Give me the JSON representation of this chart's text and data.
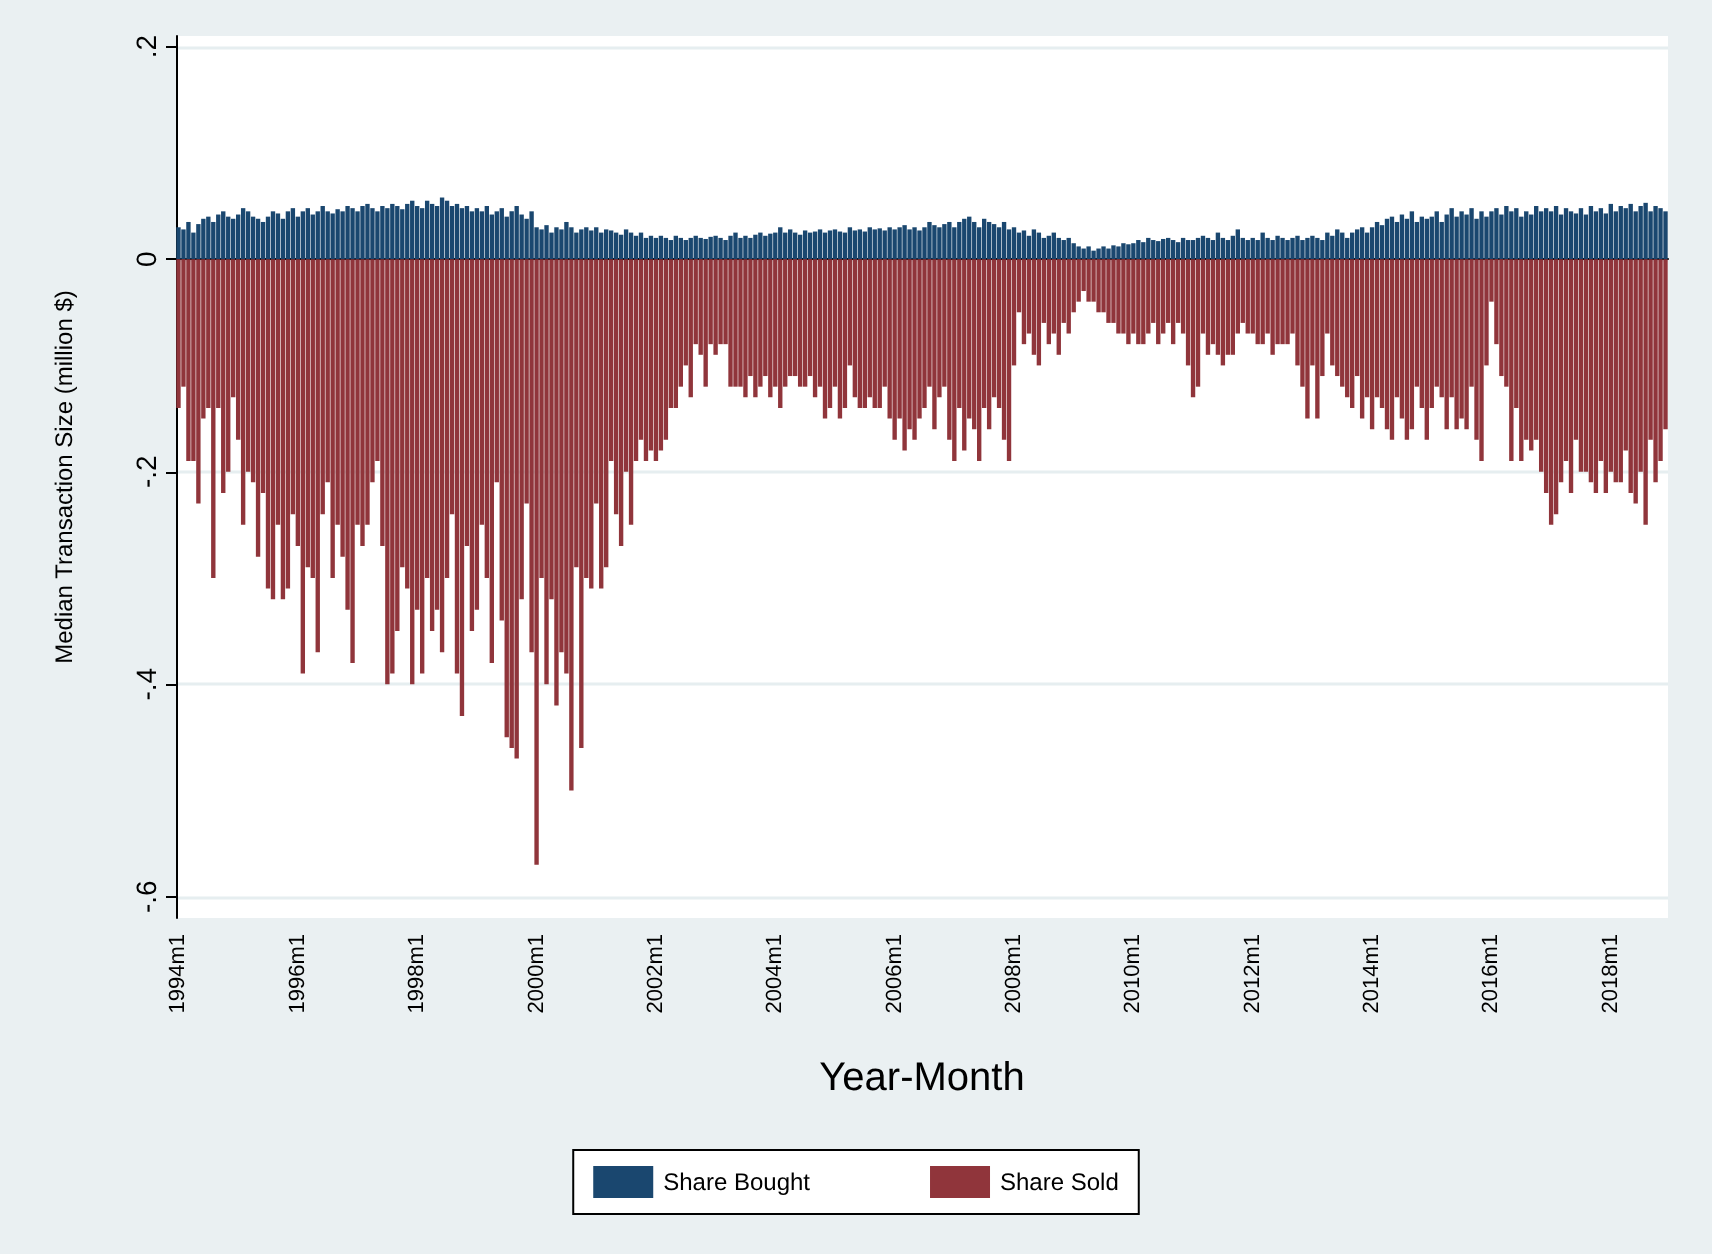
{
  "chart_data": {
    "type": "bar",
    "stacked": true,
    "xlabel": "Year-Month",
    "ylabel": "Median Transaction Size (million $)",
    "ylim": [
      -0.62,
      0.21
    ],
    "yticks": [
      {
        "value": -0.6,
        "label": "-.6"
      },
      {
        "value": -0.4,
        "label": "-.4"
      },
      {
        "value": -0.2,
        "label": "-.2"
      },
      0,
      {
        "value": 0.2,
        "label": ".2"
      }
    ],
    "grid": "y",
    "legend": "bottom",
    "categories": [
      "1994m1",
      null,
      null,
      null,
      null,
      null,
      null,
      null,
      null,
      null,
      null,
      null,
      null,
      null,
      null,
      null,
      null,
      null,
      null,
      null,
      null,
      null,
      null,
      null,
      "1996m1",
      null,
      null,
      null,
      null,
      null,
      null,
      null,
      null,
      null,
      null,
      null,
      null,
      null,
      null,
      null,
      null,
      null,
      null,
      null,
      null,
      null,
      null,
      null,
      "1998m1",
      null,
      null,
      null,
      null,
      null,
      null,
      null,
      null,
      null,
      null,
      null,
      null,
      null,
      null,
      null,
      null,
      null,
      null,
      null,
      null,
      null,
      null,
      null,
      "2000m1",
      null,
      null,
      null,
      null,
      null,
      null,
      null,
      null,
      null,
      null,
      null,
      null,
      null,
      null,
      null,
      null,
      null,
      null,
      null,
      null,
      null,
      null,
      null,
      "2002m1",
      null,
      null,
      null,
      null,
      null,
      null,
      null,
      null,
      null,
      null,
      null,
      null,
      null,
      null,
      null,
      null,
      null,
      null,
      null,
      null,
      null,
      null,
      null,
      "2004m1",
      null,
      null,
      null,
      null,
      null,
      null,
      null,
      null,
      null,
      null,
      null,
      null,
      null,
      null,
      null,
      null,
      null,
      null,
      null,
      null,
      null,
      null,
      null,
      "2006m1",
      null,
      null,
      null,
      null,
      null,
      null,
      null,
      null,
      null,
      null,
      null,
      null,
      null,
      null,
      null,
      null,
      null,
      null,
      null,
      null,
      null,
      null,
      null,
      "2008m1",
      null,
      null,
      null,
      null,
      null,
      null,
      null,
      null,
      null,
      null,
      null,
      null,
      null,
      null,
      null,
      null,
      null,
      null,
      null,
      null,
      null,
      null,
      null,
      "2010m1",
      null,
      null,
      null,
      null,
      null,
      null,
      null,
      null,
      null,
      null,
      null,
      null,
      null,
      null,
      null,
      null,
      null,
      null,
      null,
      null,
      null,
      null,
      null,
      "2012m1",
      null,
      null,
      null,
      null,
      null,
      null,
      null,
      null,
      null,
      null,
      null,
      null,
      null,
      null,
      null,
      null,
      null,
      null,
      null,
      null,
      null,
      null,
      null,
      "2014m1",
      null,
      null,
      null,
      null,
      null,
      null,
      null,
      null,
      null,
      null,
      null,
      null,
      null,
      null,
      null,
      null,
      null,
      null,
      null,
      null,
      null,
      null,
      null,
      "2016m1",
      null,
      null,
      null,
      null,
      null,
      null,
      null,
      null,
      null,
      null,
      null,
      null,
      null,
      null,
      null,
      null,
      null,
      null,
      null,
      null,
      null,
      null,
      null,
      "2018m1",
      null,
      null,
      null,
      null,
      null,
      null,
      null,
      null,
      null,
      null,
      null
    ],
    "series": [
      {
        "name": "Share Bought",
        "color": "#1a476f",
        "values": [
          0.03,
          0.028,
          0.035,
          0.025,
          0.033,
          0.038,
          0.04,
          0.035,
          0.042,
          0.045,
          0.04,
          0.038,
          0.042,
          0.048,
          0.045,
          0.04,
          0.038,
          0.035,
          0.04,
          0.045,
          0.043,
          0.038,
          0.045,
          0.048,
          0.04,
          0.045,
          0.048,
          0.042,
          0.045,
          0.05,
          0.045,
          0.043,
          0.047,
          0.045,
          0.05,
          0.048,
          0.045,
          0.05,
          0.052,
          0.048,
          0.045,
          0.05,
          0.048,
          0.052,
          0.05,
          0.047,
          0.052,
          0.055,
          0.05,
          0.048,
          0.055,
          0.052,
          0.05,
          0.058,
          0.055,
          0.05,
          0.052,
          0.048,
          0.05,
          0.045,
          0.048,
          0.045,
          0.05,
          0.042,
          0.045,
          0.048,
          0.04,
          0.045,
          0.05,
          0.042,
          0.038,
          0.045,
          0.03,
          0.028,
          0.032,
          0.025,
          0.03,
          0.028,
          0.035,
          0.03,
          0.025,
          0.028,
          0.03,
          0.027,
          0.03,
          0.025,
          0.028,
          0.027,
          0.025,
          0.023,
          0.028,
          0.025,
          0.022,
          0.025,
          0.02,
          0.022,
          0.02,
          0.022,
          0.02,
          0.018,
          0.022,
          0.02,
          0.018,
          0.02,
          0.022,
          0.02,
          0.019,
          0.021,
          0.022,
          0.02,
          0.018,
          0.022,
          0.025,
          0.02,
          0.022,
          0.02,
          0.023,
          0.025,
          0.022,
          0.024,
          0.025,
          0.03,
          0.025,
          0.028,
          0.025,
          0.023,
          0.027,
          0.025,
          0.026,
          0.028,
          0.025,
          0.027,
          0.028,
          0.026,
          0.025,
          0.03,
          0.027,
          0.028,
          0.026,
          0.03,
          0.028,
          0.029,
          0.027,
          0.03,
          0.028,
          0.03,
          0.032,
          0.028,
          0.03,
          0.027,
          0.03,
          0.035,
          0.032,
          0.03,
          0.033,
          0.035,
          0.03,
          0.035,
          0.038,
          0.04,
          0.035,
          0.03,
          0.038,
          0.035,
          0.033,
          0.03,
          0.035,
          0.028,
          0.03,
          0.025,
          0.027,
          0.022,
          0.028,
          0.025,
          0.02,
          0.022,
          0.025,
          0.02,
          0.018,
          0.02,
          0.015,
          0.012,
          0.01,
          0.012,
          0.008,
          0.01,
          0.012,
          0.01,
          0.013,
          0.012,
          0.015,
          0.014,
          0.015,
          0.018,
          0.016,
          0.02,
          0.018,
          0.017,
          0.019,
          0.02,
          0.018,
          0.016,
          0.02,
          0.018,
          0.018,
          0.02,
          0.022,
          0.02,
          0.018,
          0.025,
          0.02,
          0.018,
          0.022,
          0.028,
          0.02,
          0.018,
          0.02,
          0.018,
          0.025,
          0.02,
          0.018,
          0.022,
          0.02,
          0.018,
          0.02,
          0.022,
          0.018,
          0.02,
          0.022,
          0.02,
          0.018,
          0.025,
          0.022,
          0.028,
          0.025,
          0.02,
          0.025,
          0.028,
          0.03,
          0.025,
          0.03,
          0.035,
          0.032,
          0.038,
          0.04,
          0.035,
          0.042,
          0.038,
          0.045,
          0.035,
          0.04,
          0.038,
          0.04,
          0.045,
          0.035,
          0.042,
          0.048,
          0.04,
          0.045,
          0.042,
          0.048,
          0.038,
          0.045,
          0.04,
          0.045,
          0.048,
          0.042,
          0.05,
          0.045,
          0.048,
          0.04,
          0.045,
          0.042,
          0.05,
          0.045,
          0.048,
          0.045,
          0.05,
          0.042,
          0.048,
          0.045,
          0.043,
          0.048,
          0.042,
          0.05,
          0.045,
          0.048,
          0.043,
          0.052,
          0.045,
          0.05,
          0.048,
          0.052,
          0.045,
          0.05,
          0.053,
          0.045,
          0.05,
          0.048,
          0.045
        ]
      },
      {
        "name": "Share Sold",
        "color": "#90353b",
        "values": [
          -0.14,
          -0.12,
          -0.19,
          -0.19,
          -0.23,
          -0.15,
          -0.14,
          -0.3,
          -0.14,
          -0.22,
          -0.2,
          -0.13,
          -0.17,
          -0.25,
          -0.2,
          -0.21,
          -0.28,
          -0.22,
          -0.31,
          -0.32,
          -0.25,
          -0.32,
          -0.31,
          -0.24,
          -0.27,
          -0.39,
          -0.29,
          -0.3,
          -0.37,
          -0.24,
          -0.21,
          -0.3,
          -0.25,
          -0.28,
          -0.33,
          -0.38,
          -0.25,
          -0.27,
          -0.25,
          -0.21,
          -0.19,
          -0.27,
          -0.4,
          -0.39,
          -0.35,
          -0.29,
          -0.31,
          -0.4,
          -0.33,
          -0.39,
          -0.3,
          -0.35,
          -0.33,
          -0.37,
          -0.3,
          -0.24,
          -0.39,
          -0.43,
          -0.27,
          -0.35,
          -0.33,
          -0.25,
          -0.3,
          -0.38,
          -0.21,
          -0.34,
          -0.45,
          -0.46,
          -0.47,
          -0.32,
          -0.23,
          -0.37,
          -0.57,
          -0.3,
          -0.4,
          -0.32,
          -0.42,
          -0.37,
          -0.39,
          -0.5,
          -0.29,
          -0.46,
          -0.3,
          -0.31,
          -0.23,
          -0.31,
          -0.29,
          -0.19,
          -0.24,
          -0.27,
          -0.2,
          -0.25,
          -0.19,
          -0.17,
          -0.19,
          -0.18,
          -0.19,
          -0.18,
          -0.17,
          -0.14,
          -0.14,
          -0.12,
          -0.1,
          -0.13,
          -0.08,
          -0.09,
          -0.12,
          -0.08,
          -0.09,
          -0.08,
          -0.08,
          -0.12,
          -0.12,
          -0.12,
          -0.13,
          -0.11,
          -0.13,
          -0.12,
          -0.11,
          -0.13,
          -0.12,
          -0.14,
          -0.12,
          -0.11,
          -0.11,
          -0.12,
          -0.12,
          -0.11,
          -0.13,
          -0.12,
          -0.15,
          -0.14,
          -0.12,
          -0.15,
          -0.14,
          -0.1,
          -0.13,
          -0.14,
          -0.14,
          -0.13,
          -0.14,
          -0.14,
          -0.12,
          -0.15,
          -0.17,
          -0.15,
          -0.18,
          -0.16,
          -0.17,
          -0.15,
          -0.14,
          -0.12,
          -0.16,
          -0.13,
          -0.12,
          -0.17,
          -0.19,
          -0.14,
          -0.18,
          -0.15,
          -0.16,
          -0.19,
          -0.14,
          -0.16,
          -0.13,
          -0.14,
          -0.17,
          -0.19,
          -0.1,
          -0.05,
          -0.08,
          -0.07,
          -0.09,
          -0.1,
          -0.06,
          -0.08,
          -0.07,
          -0.09,
          -0.06,
          -0.07,
          -0.05,
          -0.04,
          -0.03,
          -0.04,
          -0.04,
          -0.05,
          -0.05,
          -0.06,
          -0.06,
          -0.07,
          -0.07,
          -0.08,
          -0.07,
          -0.08,
          -0.08,
          -0.07,
          -0.06,
          -0.08,
          -0.07,
          -0.06,
          -0.08,
          -0.06,
          -0.07,
          -0.1,
          -0.13,
          -0.12,
          -0.07,
          -0.09,
          -0.08,
          -0.09,
          -0.1,
          -0.09,
          -0.09,
          -0.07,
          -0.06,
          -0.07,
          -0.07,
          -0.08,
          -0.08,
          -0.07,
          -0.09,
          -0.08,
          -0.08,
          -0.08,
          -0.07,
          -0.1,
          -0.12,
          -0.15,
          -0.1,
          -0.15,
          -0.11,
          -0.07,
          -0.1,
          -0.11,
          -0.12,
          -0.13,
          -0.14,
          -0.11,
          -0.15,
          -0.13,
          -0.16,
          -0.13,
          -0.14,
          -0.16,
          -0.17,
          -0.13,
          -0.15,
          -0.17,
          -0.16,
          -0.12,
          -0.14,
          -0.17,
          -0.14,
          -0.12,
          -0.13,
          -0.16,
          -0.13,
          -0.16,
          -0.15,
          -0.16,
          -0.12,
          -0.17,
          -0.19,
          -0.1,
          -0.04,
          -0.08,
          -0.11,
          -0.12,
          -0.19,
          -0.14,
          -0.19,
          -0.17,
          -0.18,
          -0.17,
          -0.2,
          -0.22,
          -0.25,
          -0.24,
          -0.21,
          -0.19,
          -0.22,
          -0.17,
          -0.2,
          -0.2,
          -0.21,
          -0.22,
          -0.19,
          -0.22,
          -0.2,
          -0.21,
          -0.21,
          -0.18,
          -0.22,
          -0.23,
          -0.2,
          -0.25,
          -0.17,
          -0.21,
          -0.19,
          -0.16
        ]
      }
    ]
  }
}
